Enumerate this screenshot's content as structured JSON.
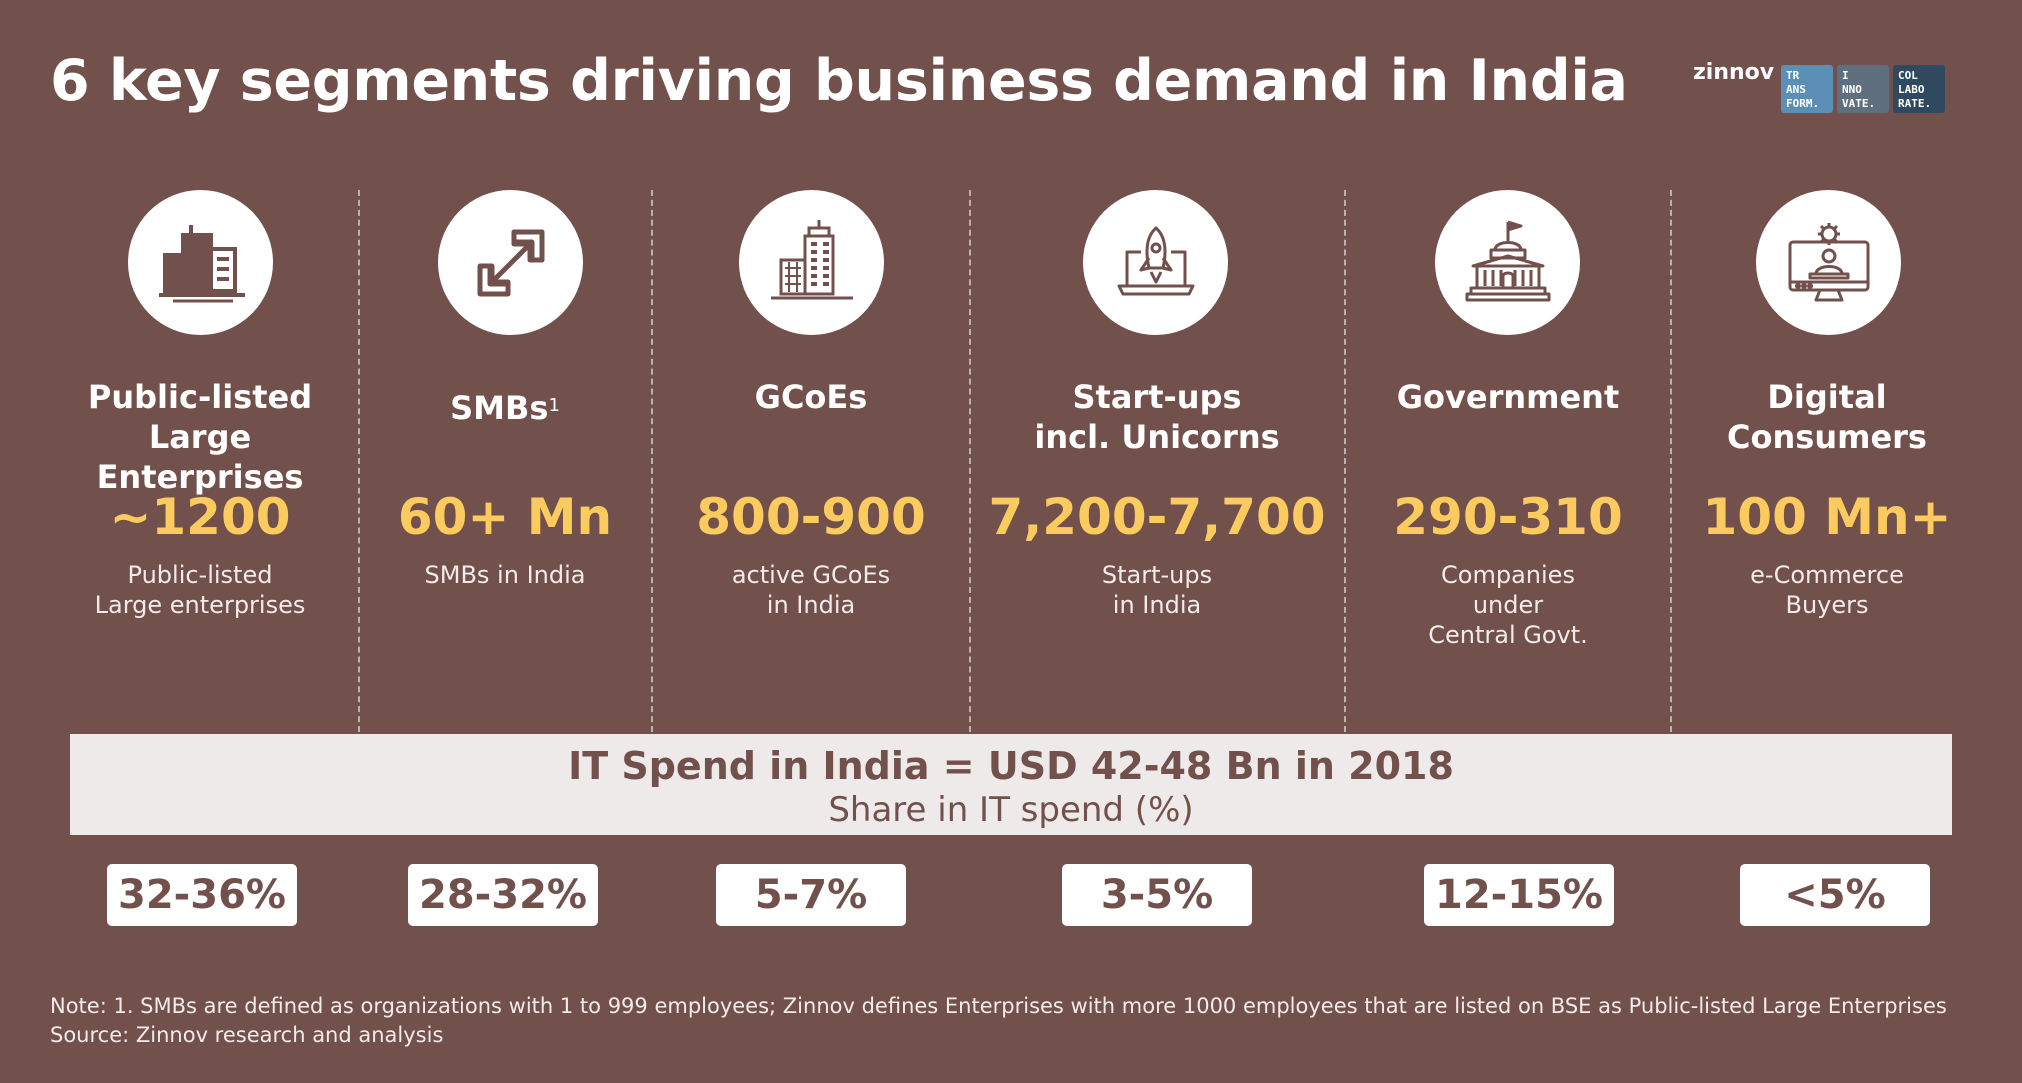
{
  "title": "6 key segments driving business demand in India",
  "brand": {
    "name": "zinnov",
    "boxes": [
      {
        "text": "TR\nANS\nFORM.",
        "color": "#5b8fb5"
      },
      {
        "text": "I\nNNO\nVATE.",
        "color": "#5f6f7d"
      },
      {
        "text": "COL\nLABO\nRATE.",
        "color": "#2f4a5e"
      }
    ]
  },
  "segments": [
    {
      "icon": "office-building-icon",
      "title": "Public-listed\nLarge Enterprises",
      "value": "~1200",
      "desc": "Public-listed\nLarge enterprises",
      "share": "32-36%"
    },
    {
      "icon": "scale-arrows-icon",
      "title": "SMBs",
      "title_sup": "1",
      "value": "60+ Mn",
      "desc": "SMBs in India",
      "share": "28-32%"
    },
    {
      "icon": "skyscraper-icon",
      "title": "GCoEs",
      "value": "800-900",
      "desc": "active GCoEs\nin India",
      "share": "5-7%"
    },
    {
      "icon": "rocket-laptop-icon",
      "title": "Start-ups\nincl. Unicorns",
      "value": "7,200-7,700",
      "desc": "Start-ups\nin India",
      "share": "3-5%"
    },
    {
      "icon": "government-building-icon",
      "title": "Government",
      "value": "290-310",
      "desc": "Companies\nunder\nCentral Govt.",
      "share": "12-15%"
    },
    {
      "icon": "digital-consumer-icon",
      "title": "Digital\nConsumers",
      "value": "100 Mn+",
      "desc": "e-Commerce\nBuyers",
      "share": "<5%"
    }
  ],
  "band": {
    "title": "IT Spend in India = USD 42-48 Bn in 2018",
    "subtitle": "Share in IT spend (%)"
  },
  "notes": {
    "note": "Note: 1. SMBs are defined as organizations with 1 to 999 employees; Zinnov defines Enterprises with more 1000 employees that are listed on BSE as Public-listed Large Enterprises",
    "source": "Source: Zinnov research and analysis"
  },
  "colors": {
    "background": "#72504c",
    "value_accent": "#fbcb5f",
    "band": "#eeeaea"
  }
}
